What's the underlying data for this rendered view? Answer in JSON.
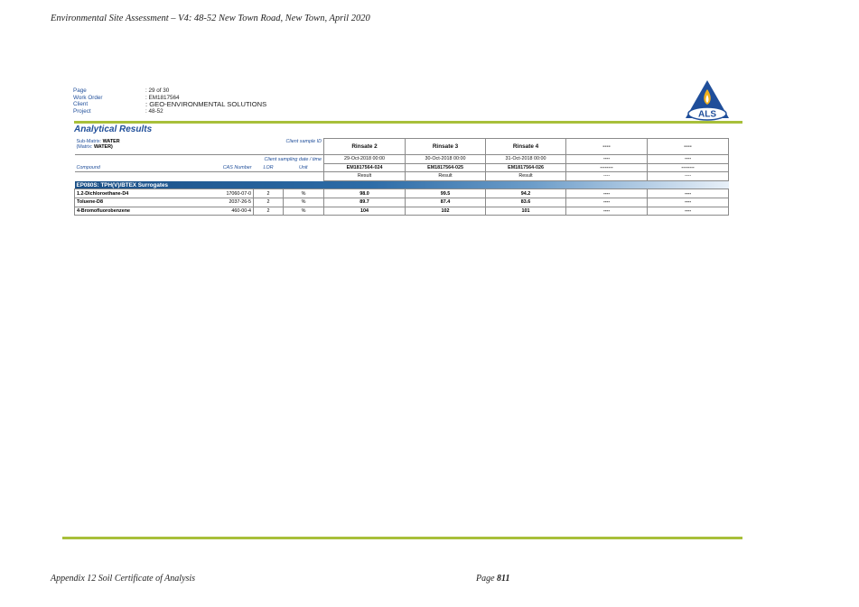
{
  "header": {
    "title": "Environmental Site Assessment – V4: 48-52 New Town Road, New Town, April 2020"
  },
  "meta": [
    {
      "label": "Page",
      "value": ": 29 of 30"
    },
    {
      "label": "Work Order",
      "value": ": EM1817564"
    },
    {
      "label": "Client",
      "value": ": GEO-ENVIRONMENTAL SOLUTIONS"
    },
    {
      "label": "Project",
      "value": ": 48-52"
    }
  ],
  "logo": {
    "text": "ALS",
    "color": "#1f4e9a",
    "flame_color": "#f2b11c"
  },
  "section_title": "Analytical Results",
  "table": {
    "sub_matrix_label": "Sub-Matrix: ",
    "sub_matrix_value": "WATER",
    "matrix_label": "(Matrix: ",
    "matrix_value": "WATER)",
    "client_sample_id_label": "Client sample ID",
    "sampling_label": "Client sampling date / time",
    "compound_label": "Compound",
    "cas_label": "CAS Number",
    "lor_label": "LOR",
    "unit_label": "Unit",
    "samples": [
      {
        "id": "Rinsate 2",
        "date": "29-Oct-2018 00:00",
        "lab": "EM1817564-024",
        "result": "Result"
      },
      {
        "id": "Rinsate 3",
        "date": "30-Oct-2018 00:00",
        "lab": "EM1817564-025",
        "result": "Result"
      },
      {
        "id": "Rinsate 4",
        "date": "31-Oct-2018 00:00",
        "lab": "EM1817564-026",
        "result": "Result"
      },
      {
        "id": "----",
        "date": "----",
        "lab": "--------",
        "result": "----"
      },
      {
        "id": "----",
        "date": "----",
        "lab": "--------",
        "result": "----"
      }
    ],
    "group": "EP080S: TPH(V)/BTEX Surrogates",
    "rows": [
      {
        "compound": "1.2-Dichloroethane-D4",
        "cas": "17060-07-0",
        "lor": "2",
        "unit": "%",
        "values": [
          "98.0",
          "99.5",
          "94.2",
          "----",
          "----"
        ]
      },
      {
        "compound": "Toluene-D8",
        "cas": "2037-26-5",
        "lor": "2",
        "unit": "%",
        "values": [
          "89.7",
          "87.4",
          "83.6",
          "----",
          "----"
        ]
      },
      {
        "compound": "4-Bromofluorobenzene",
        "cas": "460-00-4",
        "lor": "2",
        "unit": "%",
        "values": [
          "104",
          "102",
          "101",
          "----",
          "----"
        ]
      }
    ]
  },
  "footer": {
    "left": "Appendix 12 Soil Certificate of Analysis",
    "page_label": "Page ",
    "page_number": "811"
  }
}
